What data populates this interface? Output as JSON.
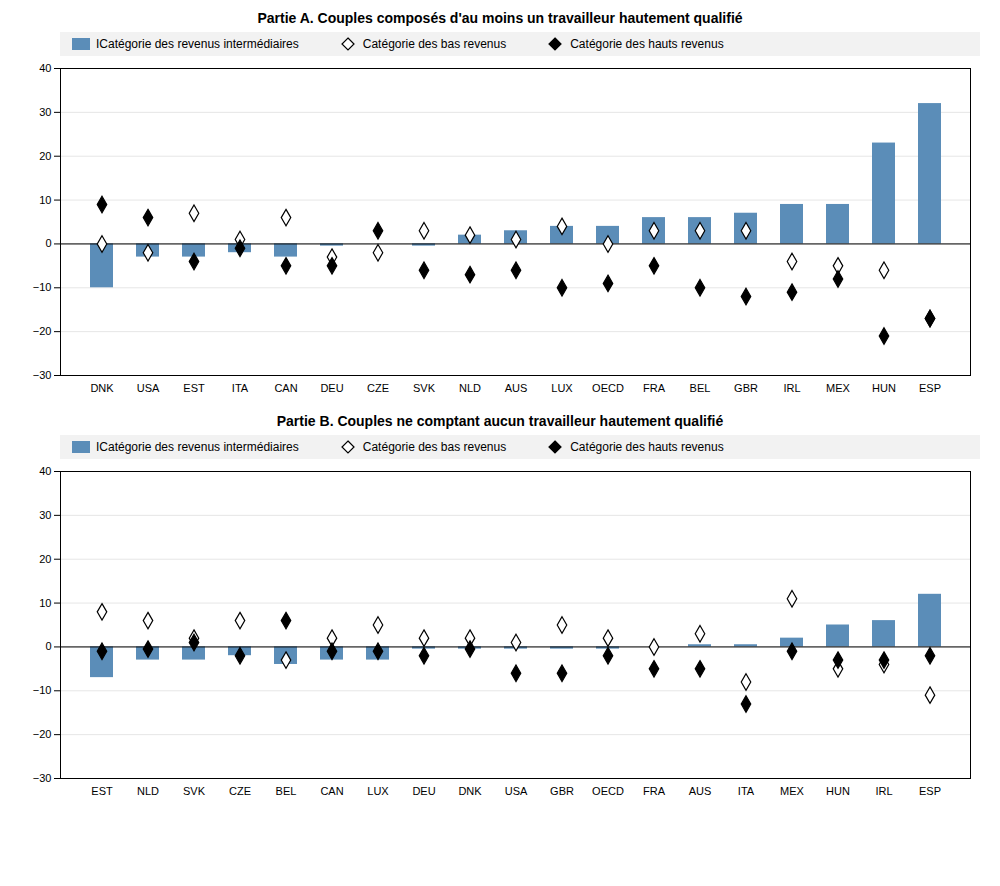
{
  "chart_data": [
    {
      "type": "bar",
      "title": "Partie A. Couples composés d'au moins un travailleur hautement qualifié",
      "categories": [
        "DNK",
        "USA",
        "EST",
        "ITA",
        "CAN",
        "DEU",
        "CZE",
        "SVK",
        "NLD",
        "AUS",
        "LUX",
        "OECD",
        "FRA",
        "BEL",
        "GBR",
        "IRL",
        "MEX",
        "HUN",
        "ESP"
      ],
      "series": [
        {
          "name": "ICatégorie des revenus intermédiaires",
          "type": "bar",
          "color": "#5B8DB8",
          "values": [
            -10,
            -3,
            -3,
            -2,
            -3,
            -0.5,
            0.0,
            -0.5,
            2,
            3,
            4,
            4,
            6,
            6,
            7,
            9,
            9,
            23,
            32
          ]
        },
        {
          "name": "Catégorie des bas revenus",
          "type": "scatter",
          "marker": "diamond_open",
          "color": "black",
          "values": [
            0,
            -2,
            7,
            1,
            6,
            -3,
            -2,
            3,
            2,
            1,
            4,
            0,
            3,
            3,
            3,
            -4,
            -5,
            -6,
            -17
          ]
        },
        {
          "name": "Catégorie des hauts revenus",
          "type": "scatter",
          "marker": "diamond",
          "color": "black",
          "values": [
            9,
            6,
            -4,
            -1,
            -5,
            -5,
            3,
            -6,
            -7,
            -6,
            -10,
            -9,
            -5,
            -10,
            -12,
            -11,
            -8,
            -21,
            -17
          ]
        }
      ],
      "ylim": [
        -30,
        40
      ],
      "yticks": [
        -30,
        -20,
        -10,
        0,
        10,
        20,
        30,
        40
      ],
      "grid": true,
      "legend": "top"
    },
    {
      "type": "bar",
      "title": "Partie B. Couples ne comptant aucun travailleur hautement qualifié",
      "categories": [
        "EST",
        "NLD",
        "SVK",
        "CZE",
        "BEL",
        "CAN",
        "LUX",
        "DEU",
        "DNK",
        "USA",
        "GBR",
        "OECD",
        "FRA",
        "AUS",
        "ITA",
        "MEX",
        "HUN",
        "IRL",
        "ESP"
      ],
      "series": [
        {
          "name": "ICatégorie des revenus intermédiaires",
          "type": "bar",
          "color": "#5B8DB8",
          "values": [
            -7,
            -3,
            -3,
            -2,
            -4,
            -3,
            -3,
            -0.5,
            -0.5,
            -0.5,
            -0.5,
            -0.5,
            0,
            0.5,
            0.5,
            2,
            5,
            6,
            12
          ]
        },
        {
          "name": "Catégorie des bas revenus",
          "type": "scatter",
          "marker": "diamond_open",
          "color": "black",
          "values": [
            8,
            6,
            2,
            6,
            -3,
            2,
            5,
            2,
            2,
            1,
            5,
            2,
            0,
            3,
            -8,
            11,
            -5,
            -4,
            -11
          ]
        },
        {
          "name": "Catégorie des hauts revenus",
          "type": "scatter",
          "marker": "diamond",
          "color": "black",
          "values": [
            -1,
            -0.5,
            1,
            -2,
            6,
            -1,
            -1,
            -2,
            -0.5,
            -6,
            -6,
            -2,
            -5,
            -5,
            -13,
            -1,
            -3,
            -3,
            -2
          ]
        }
      ],
      "ylim": [
        -30,
        40
      ],
      "yticks": [
        -30,
        -20,
        -10,
        0,
        10,
        20,
        30,
        40
      ],
      "grid": true,
      "legend": "top"
    }
  ]
}
